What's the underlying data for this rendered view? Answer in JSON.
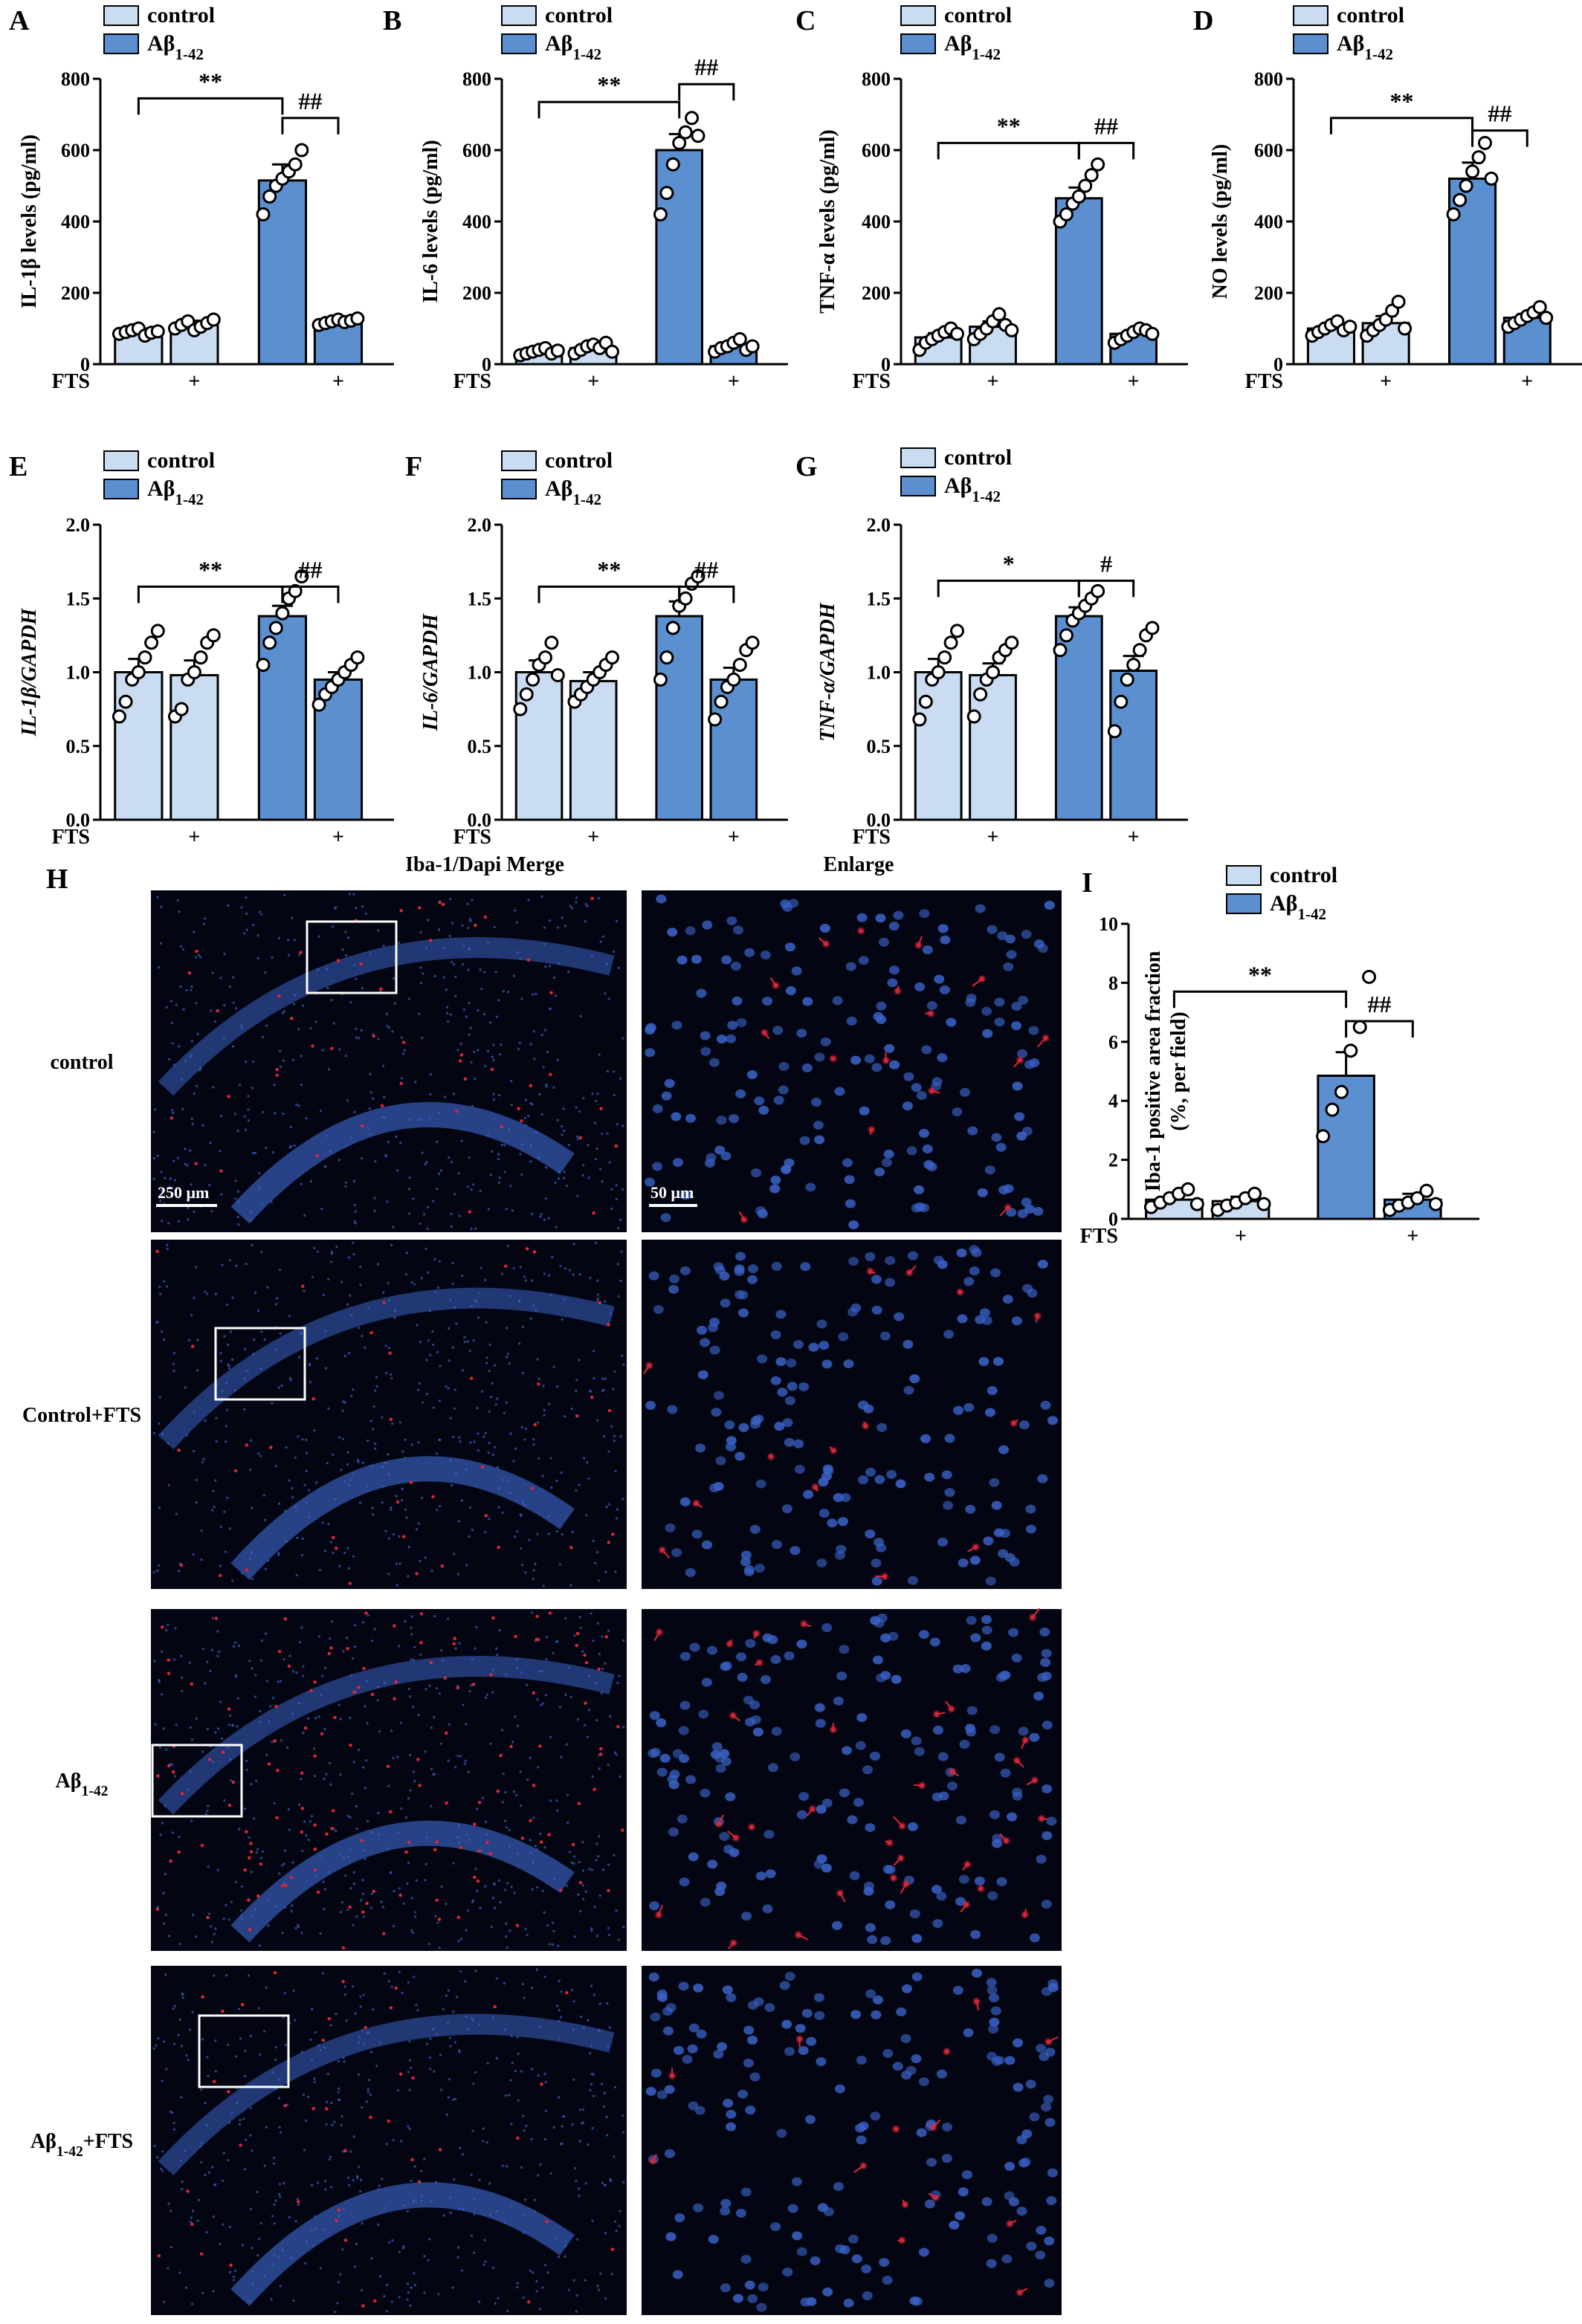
{
  "colors": {
    "control": "#c9dcf2",
    "abeta": "#5b8fcf",
    "bar_stroke": "#000000",
    "micrograph_bg": "#030612",
    "nuclei": "#3a62c6",
    "iba1": "#e0263a"
  },
  "legend": {
    "control": "control",
    "abeta_main": "Aβ",
    "abeta_sub": "1-42"
  },
  "fts_row": {
    "label": "FTS",
    "plus": "+"
  },
  "micrographs": {
    "merge_title": "Iba-1/Dapi Merge",
    "enlarge_title": "Enlarge",
    "rows": [
      {
        "main": "control",
        "sub": "",
        "suffix": ""
      },
      {
        "main": "Control+FTS",
        "sub": "",
        "suffix": ""
      },
      {
        "main": "Aβ",
        "sub": "1-42",
        "suffix": ""
      },
      {
        "main": "Aβ",
        "sub": "1-42",
        "suffix": "+FTS"
      }
    ],
    "scale_merge": "250 μm",
    "scale_enlarge": "50 μm",
    "panel_label": "H"
  },
  "chart_data": [
    {
      "panel": "A",
      "type": "bar",
      "ylabel": "IL-1β levels (pg/ml)",
      "ylabel_italic": false,
      "ylim": [
        0,
        800
      ],
      "yticks": [
        "0",
        "200",
        "400",
        "600",
        "800"
      ],
      "groups": [
        "control",
        "control+FTS",
        "Aβ1-42",
        "Aβ1-42+FTS"
      ],
      "fts": [
        false,
        true,
        false,
        true
      ],
      "means": [
        90,
        110,
        515,
        120
      ],
      "sem": [
        10,
        12,
        45,
        10
      ],
      "points": [
        [
          85,
          90,
          95,
          100,
          80,
          88,
          92
        ],
        [
          100,
          110,
          120,
          95,
          105,
          115,
          125
        ],
        [
          420,
          470,
          500,
          520,
          540,
          560,
          600
        ],
        [
          110,
          115,
          120,
          125,
          118,
          122,
          128
        ]
      ],
      "sig": [
        {
          "text": "**",
          "from": 0,
          "to": 2,
          "level": 745
        },
        {
          "text": "##",
          "from": 2,
          "to": 3,
          "level": 690
        }
      ]
    },
    {
      "panel": "B",
      "type": "bar",
      "ylabel": "IL-6 levels (pg/ml)",
      "ylabel_italic": false,
      "ylim": [
        0,
        800
      ],
      "yticks": [
        "0",
        "200",
        "400",
        "600",
        "800"
      ],
      "groups": [
        "control",
        "control+FTS",
        "Aβ1-42",
        "Aβ1-42+FTS"
      ],
      "fts": [
        false,
        true,
        false,
        true
      ],
      "means": [
        35,
        45,
        600,
        50
      ],
      "sem": [
        6,
        8,
        45,
        8
      ],
      "points": [
        [
          25,
          30,
          35,
          40,
          45,
          30,
          38
        ],
        [
          30,
          40,
          50,
          55,
          45,
          60,
          35
        ],
        [
          420,
          480,
          560,
          620,
          650,
          690,
          640
        ],
        [
          35,
          45,
          50,
          60,
          70,
          40,
          50
        ]
      ],
      "sig": [
        {
          "text": "**",
          "from": 0,
          "to": 2,
          "level": 735
        },
        {
          "text": "##",
          "from": 2,
          "to": 3,
          "level": 785
        }
      ]
    },
    {
      "panel": "C",
      "type": "bar",
      "ylabel": "TNF-α levels (pg/ml)",
      "ylabel_italic": false,
      "ylim": [
        0,
        800
      ],
      "yticks": [
        "0",
        "200",
        "400",
        "600",
        "800"
      ],
      "groups": [
        "control",
        "control+FTS",
        "Aβ1-42",
        "Aβ1-42+FTS"
      ],
      "fts": [
        false,
        true,
        false,
        true
      ],
      "means": [
        75,
        105,
        465,
        85
      ],
      "sem": [
        12,
        15,
        30,
        8
      ],
      "points": [
        [
          40,
          60,
          70,
          80,
          90,
          100,
          85
        ],
        [
          70,
          85,
          100,
          120,
          140,
          110,
          95
        ],
        [
          400,
          420,
          450,
          470,
          500,
          530,
          560
        ],
        [
          60,
          70,
          80,
          90,
          100,
          95,
          85
        ]
      ],
      "sig": [
        {
          "text": "**",
          "from": 0,
          "to": 2,
          "level": 620
        },
        {
          "text": "##",
          "from": 2,
          "to": 3,
          "level": 620
        }
      ]
    },
    {
      "panel": "D",
      "type": "bar",
      "ylabel": "NO levels (pg/ml)",
      "ylabel_italic": false,
      "ylim": [
        0,
        800
      ],
      "yticks": [
        "0",
        "200",
        "400",
        "600",
        "800"
      ],
      "groups": [
        "control",
        "control+FTS",
        "Aβ1-42",
        "Aβ1-42+FTS"
      ],
      "fts": [
        false,
        true,
        false,
        true
      ],
      "means": [
        100,
        115,
        520,
        130
      ],
      "sem": [
        10,
        20,
        45,
        10
      ],
      "points": [
        [
          80,
          90,
          100,
          110,
          120,
          95,
          105
        ],
        [
          80,
          95,
          110,
          125,
          150,
          175,
          100
        ],
        [
          420,
          460,
          500,
          540,
          580,
          620,
          520
        ],
        [
          105,
          115,
          125,
          135,
          145,
          160,
          130
        ]
      ],
      "sig": [
        {
          "text": "**",
          "from": 0,
          "to": 2,
          "level": 690
        },
        {
          "text": "##",
          "from": 2,
          "to": 3,
          "level": 655
        }
      ]
    },
    {
      "panel": "E",
      "type": "bar",
      "ylabel": "IL-1β/GAPDH",
      "ylabel_italic": true,
      "ylim": [
        0,
        2
      ],
      "yticks": [
        "0.0",
        "0.5",
        "1.0",
        "1.5",
        "2.0"
      ],
      "groups": [
        "control",
        "control+FTS",
        "Aβ1-42",
        "Aβ1-42+FTS"
      ],
      "fts": [
        false,
        true,
        false,
        true
      ],
      "means": [
        1.0,
        0.98,
        1.38,
        0.95
      ],
      "sem": [
        0.09,
        0.1,
        0.07,
        0.05
      ],
      "points": [
        [
          0.7,
          0.8,
          0.95,
          1.0,
          1.1,
          1.2,
          1.28
        ],
        [
          0.7,
          0.75,
          0.95,
          1.0,
          1.1,
          1.2,
          1.25
        ],
        [
          1.05,
          1.2,
          1.3,
          1.4,
          1.5,
          1.55,
          1.65
        ],
        [
          0.78,
          0.85,
          0.9,
          0.95,
          1.0,
          1.05,
          1.1
        ]
      ],
      "sig": [
        {
          "text": "**",
          "from": 0,
          "to": 2,
          "level": 1.58
        },
        {
          "text": "##",
          "from": 2,
          "to": 3,
          "level": 1.58
        }
      ]
    },
    {
      "panel": "F",
      "type": "bar",
      "ylabel": "IL-6/GAPDH",
      "ylabel_italic": true,
      "ylim": [
        0,
        2
      ],
      "yticks": [
        "0.0",
        "0.5",
        "1.0",
        "1.5",
        "2.0"
      ],
      "groups": [
        "control",
        "control+FTS",
        "Aβ1-42",
        "Aβ1-42+FTS"
      ],
      "fts": [
        false,
        true,
        false,
        true
      ],
      "means": [
        1.0,
        0.94,
        1.38,
        0.95
      ],
      "sem": [
        0.08,
        0.06,
        0.1,
        0.08
      ],
      "points": [
        [
          0.75,
          0.85,
          0.95,
          1.05,
          1.1,
          1.2,
          0.98
        ],
        [
          0.8,
          0.85,
          0.9,
          0.95,
          1.0,
          1.05,
          1.1
        ],
        [
          0.95,
          1.1,
          1.3,
          1.45,
          1.5,
          1.6,
          1.65
        ],
        [
          0.68,
          0.8,
          0.9,
          0.95,
          1.05,
          1.15,
          1.2
        ]
      ],
      "sig": [
        {
          "text": "**",
          "from": 0,
          "to": 2,
          "level": 1.58
        },
        {
          "text": "##",
          "from": 2,
          "to": 3,
          "level": 1.58
        }
      ]
    },
    {
      "panel": "G",
      "type": "bar",
      "ylabel": "TNF-α/GAPDH",
      "ylabel_italic": true,
      "ylim": [
        0,
        2
      ],
      "yticks": [
        "0.0",
        "0.5",
        "1.0",
        "1.5",
        "2.0"
      ],
      "groups": [
        "control",
        "control+FTS",
        "Aβ1-42",
        "Aβ1-42+FTS"
      ],
      "fts": [
        false,
        true,
        false,
        true
      ],
      "means": [
        1.0,
        0.98,
        1.38,
        1.01
      ],
      "sem": [
        0.09,
        0.08,
        0.06,
        0.1
      ],
      "points": [
        [
          0.68,
          0.8,
          0.95,
          1.0,
          1.1,
          1.2,
          1.28
        ],
        [
          0.7,
          0.85,
          0.95,
          1.0,
          1.1,
          1.15,
          1.2
        ],
        [
          1.15,
          1.25,
          1.35,
          1.4,
          1.45,
          1.5,
          1.55
        ],
        [
          0.6,
          0.8,
          0.95,
          1.05,
          1.15,
          1.25,
          1.3
        ]
      ],
      "sig": [
        {
          "text": "*",
          "from": 0,
          "to": 2,
          "level": 1.62
        },
        {
          "text": "#",
          "from": 2,
          "to": 3,
          "level": 1.62
        }
      ]
    },
    {
      "panel": "I",
      "type": "bar",
      "ylabel": "Iba-1 positive area fraction (%, per field)",
      "ylabel_italic": false,
      "ylim": [
        0,
        10
      ],
      "yticks": [
        "0",
        "2",
        "4",
        "6",
        "8",
        "10"
      ],
      "groups": [
        "control",
        "control+FTS",
        "Aβ1-42",
        "Aβ1-42+FTS"
      ],
      "fts": [
        false,
        true,
        false,
        true
      ],
      "means": [
        0.65,
        0.6,
        4.85,
        0.65
      ],
      "sem": [
        0.15,
        0.15,
        0.8,
        0.2
      ],
      "points": [
        [
          0.4,
          0.55,
          0.7,
          0.85,
          1.0,
          0.5
        ],
        [
          0.3,
          0.45,
          0.55,
          0.7,
          0.85,
          0.5
        ],
        [
          2.8,
          3.7,
          4.3,
          5.7,
          6.5,
          8.2
        ],
        [
          0.3,
          0.45,
          0.55,
          0.7,
          0.95,
          0.5
        ]
      ],
      "sig": [
        {
          "text": "**",
          "from": 0,
          "to": 2,
          "level": 7.7
        },
        {
          "text": "##",
          "from": 2,
          "to": 3,
          "level": 6.7
        }
      ]
    }
  ]
}
